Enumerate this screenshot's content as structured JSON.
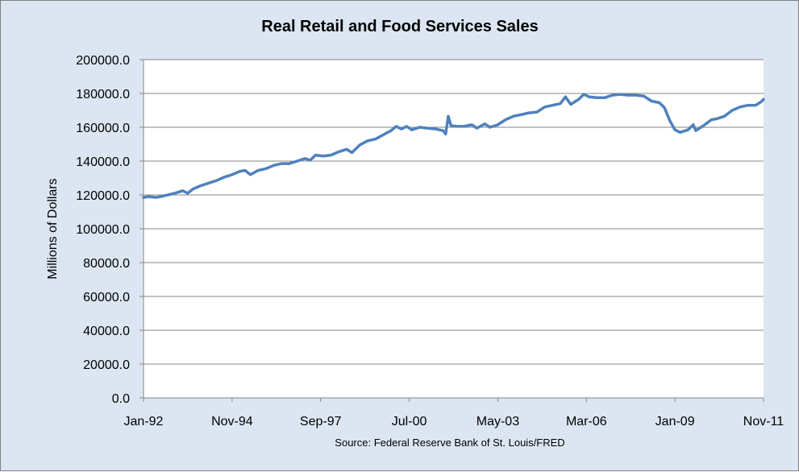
{
  "chart_data": {
    "type": "line",
    "title": "Real Retail and Food Services Sales",
    "xlabel": "",
    "ylabel": "Millions of Dollars",
    "ylim": [
      0,
      200000
    ],
    "y_ticks": [
      "0.0",
      "20000.0",
      "40000.0",
      "60000.0",
      "80000.0",
      "100000.0",
      "120000.0",
      "140000.0",
      "160000.0",
      "180000.0",
      "200000.0"
    ],
    "x_ticks": [
      "Jan-92",
      "Nov-94",
      "Sep-97",
      "Jul-00",
      "May-03",
      "Mar-06",
      "Jan-09",
      "Nov-11"
    ],
    "x_range": [
      "Jan-92",
      "Nov-11"
    ],
    "source": "Source: Federal Reserve Bank of St. Louis/FRED",
    "grid": "horizontal",
    "legend": "none",
    "line_color": "#4f81bd",
    "series": [
      {
        "points": [
          [
            "Jan-92",
            118500
          ],
          [
            "Mar-92",
            119000
          ],
          [
            "Jun-92",
            118500
          ],
          [
            "Sep-92",
            119500
          ],
          [
            "Jan-93",
            121000
          ],
          [
            "Apr-93",
            122500
          ],
          [
            "Jun-93",
            121000
          ],
          [
            "Aug-93",
            123500
          ],
          [
            "Nov-93",
            125500
          ],
          [
            "Feb-94",
            127000
          ],
          [
            "May-94",
            128500
          ],
          [
            "Aug-94",
            130500
          ],
          [
            "Nov-94",
            132000
          ],
          [
            "Feb-95",
            134000
          ],
          [
            "Apr-95",
            134500
          ],
          [
            "Jun-95",
            132000
          ],
          [
            "Sep-95",
            134500
          ],
          [
            "Dec-95",
            135500
          ],
          [
            "Mar-96",
            137500
          ],
          [
            "Jun-96",
            138500
          ],
          [
            "Sep-96",
            138500
          ],
          [
            "Dec-96",
            140000
          ],
          [
            "Mar-97",
            141500
          ],
          [
            "May-97",
            140500
          ],
          [
            "Jul-97",
            143500
          ],
          [
            "Oct-97",
            143000
          ],
          [
            "Jan-98",
            143500
          ],
          [
            "Apr-98",
            145500
          ],
          [
            "Jul-98",
            147000
          ],
          [
            "Sep-98",
            145000
          ],
          [
            "Dec-98",
            149500
          ],
          [
            "Mar-99",
            152000
          ],
          [
            "Jun-99",
            153000
          ],
          [
            "Sep-99",
            155500
          ],
          [
            "Dec-99",
            158000
          ],
          [
            "Feb-00",
            160500
          ],
          [
            "Apr-00",
            159000
          ],
          [
            "Jun-00",
            160500
          ],
          [
            "Aug-00",
            158500
          ],
          [
            "Nov-00",
            160000
          ],
          [
            "Feb-01",
            159500
          ],
          [
            "May-01",
            159000
          ],
          [
            "Aug-01",
            158000
          ],
          [
            "Sep-01",
            156000
          ],
          [
            "Oct-01",
            166500
          ],
          [
            "Nov-01",
            161000
          ],
          [
            "Jan-02",
            160500
          ],
          [
            "Apr-02",
            160500
          ],
          [
            "Jul-02",
            161500
          ],
          [
            "Sep-02",
            159500
          ],
          [
            "Dec-02",
            162000
          ],
          [
            "Feb-03",
            160000
          ],
          [
            "May-03",
            161500
          ],
          [
            "Aug-03",
            164500
          ],
          [
            "Nov-03",
            166500
          ],
          [
            "Feb-04",
            167500
          ],
          [
            "May-04",
            168500
          ],
          [
            "Aug-04",
            169000
          ],
          [
            "Nov-04",
            172000
          ],
          [
            "Feb-05",
            173000
          ],
          [
            "May-05",
            174000
          ],
          [
            "Jul-05",
            178000
          ],
          [
            "Sep-05",
            173500
          ],
          [
            "Dec-05",
            176500
          ],
          [
            "Feb-06",
            179500
          ],
          [
            "Apr-06",
            178000
          ],
          [
            "Jul-06",
            177500
          ],
          [
            "Oct-06",
            177500
          ],
          [
            "Jan-07",
            179000
          ],
          [
            "Apr-07",
            179500
          ],
          [
            "Jul-07",
            179000
          ],
          [
            "Oct-07",
            179000
          ],
          [
            "Jan-08",
            178500
          ],
          [
            "Apr-08",
            175500
          ],
          [
            "Jul-08",
            174500
          ],
          [
            "Sep-08",
            171500
          ],
          [
            "Nov-08",
            164000
          ],
          [
            "Jan-09",
            158500
          ],
          [
            "Mar-09",
            157000
          ],
          [
            "Jun-09",
            158500
          ],
          [
            "Aug-09",
            161500
          ],
          [
            "Sep-09",
            158000
          ],
          [
            "Dec-09",
            161000
          ],
          [
            "Mar-10",
            164500
          ],
          [
            "May-10",
            165000
          ],
          [
            "Aug-10",
            166500
          ],
          [
            "Nov-10",
            170000
          ],
          [
            "Feb-11",
            172000
          ],
          [
            "May-11",
            173000
          ],
          [
            "Aug-11",
            173000
          ],
          [
            "Oct-11",
            175000
          ],
          [
            "Nov-11",
            176500
          ]
        ]
      }
    ]
  }
}
